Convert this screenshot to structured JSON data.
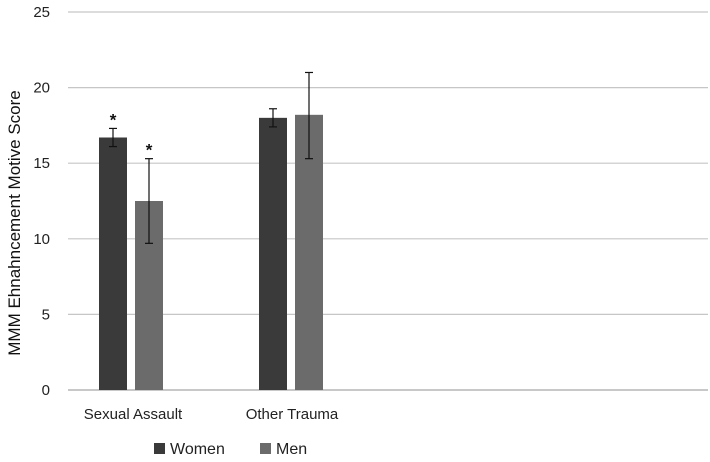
{
  "chart_data": {
    "type": "bar",
    "title": "",
    "xlabel": "",
    "ylabel": "MMM Ehnahncement Motive Score",
    "ylim": [
      0,
      25
    ],
    "yticks": [
      0,
      5,
      10,
      15,
      20,
      25
    ],
    "grid": true,
    "legend_position": "bottom",
    "categories": [
      "Sexual Assault",
      "Other Trauma"
    ],
    "series": [
      {
        "name": "Women",
        "color": "#3a3a3a",
        "values": [
          16.7,
          18.0
        ],
        "error_low": [
          16.1,
          17.4
        ],
        "error_high": [
          17.3,
          18.6
        ],
        "annotations": [
          "*",
          ""
        ]
      },
      {
        "name": "Men",
        "color": "#6b6b6b",
        "values": [
          12.5,
          18.2
        ],
        "error_low": [
          9.7,
          15.3
        ],
        "error_high": [
          15.3,
          21.0
        ],
        "annotations": [
          "*",
          ""
        ]
      }
    ]
  }
}
